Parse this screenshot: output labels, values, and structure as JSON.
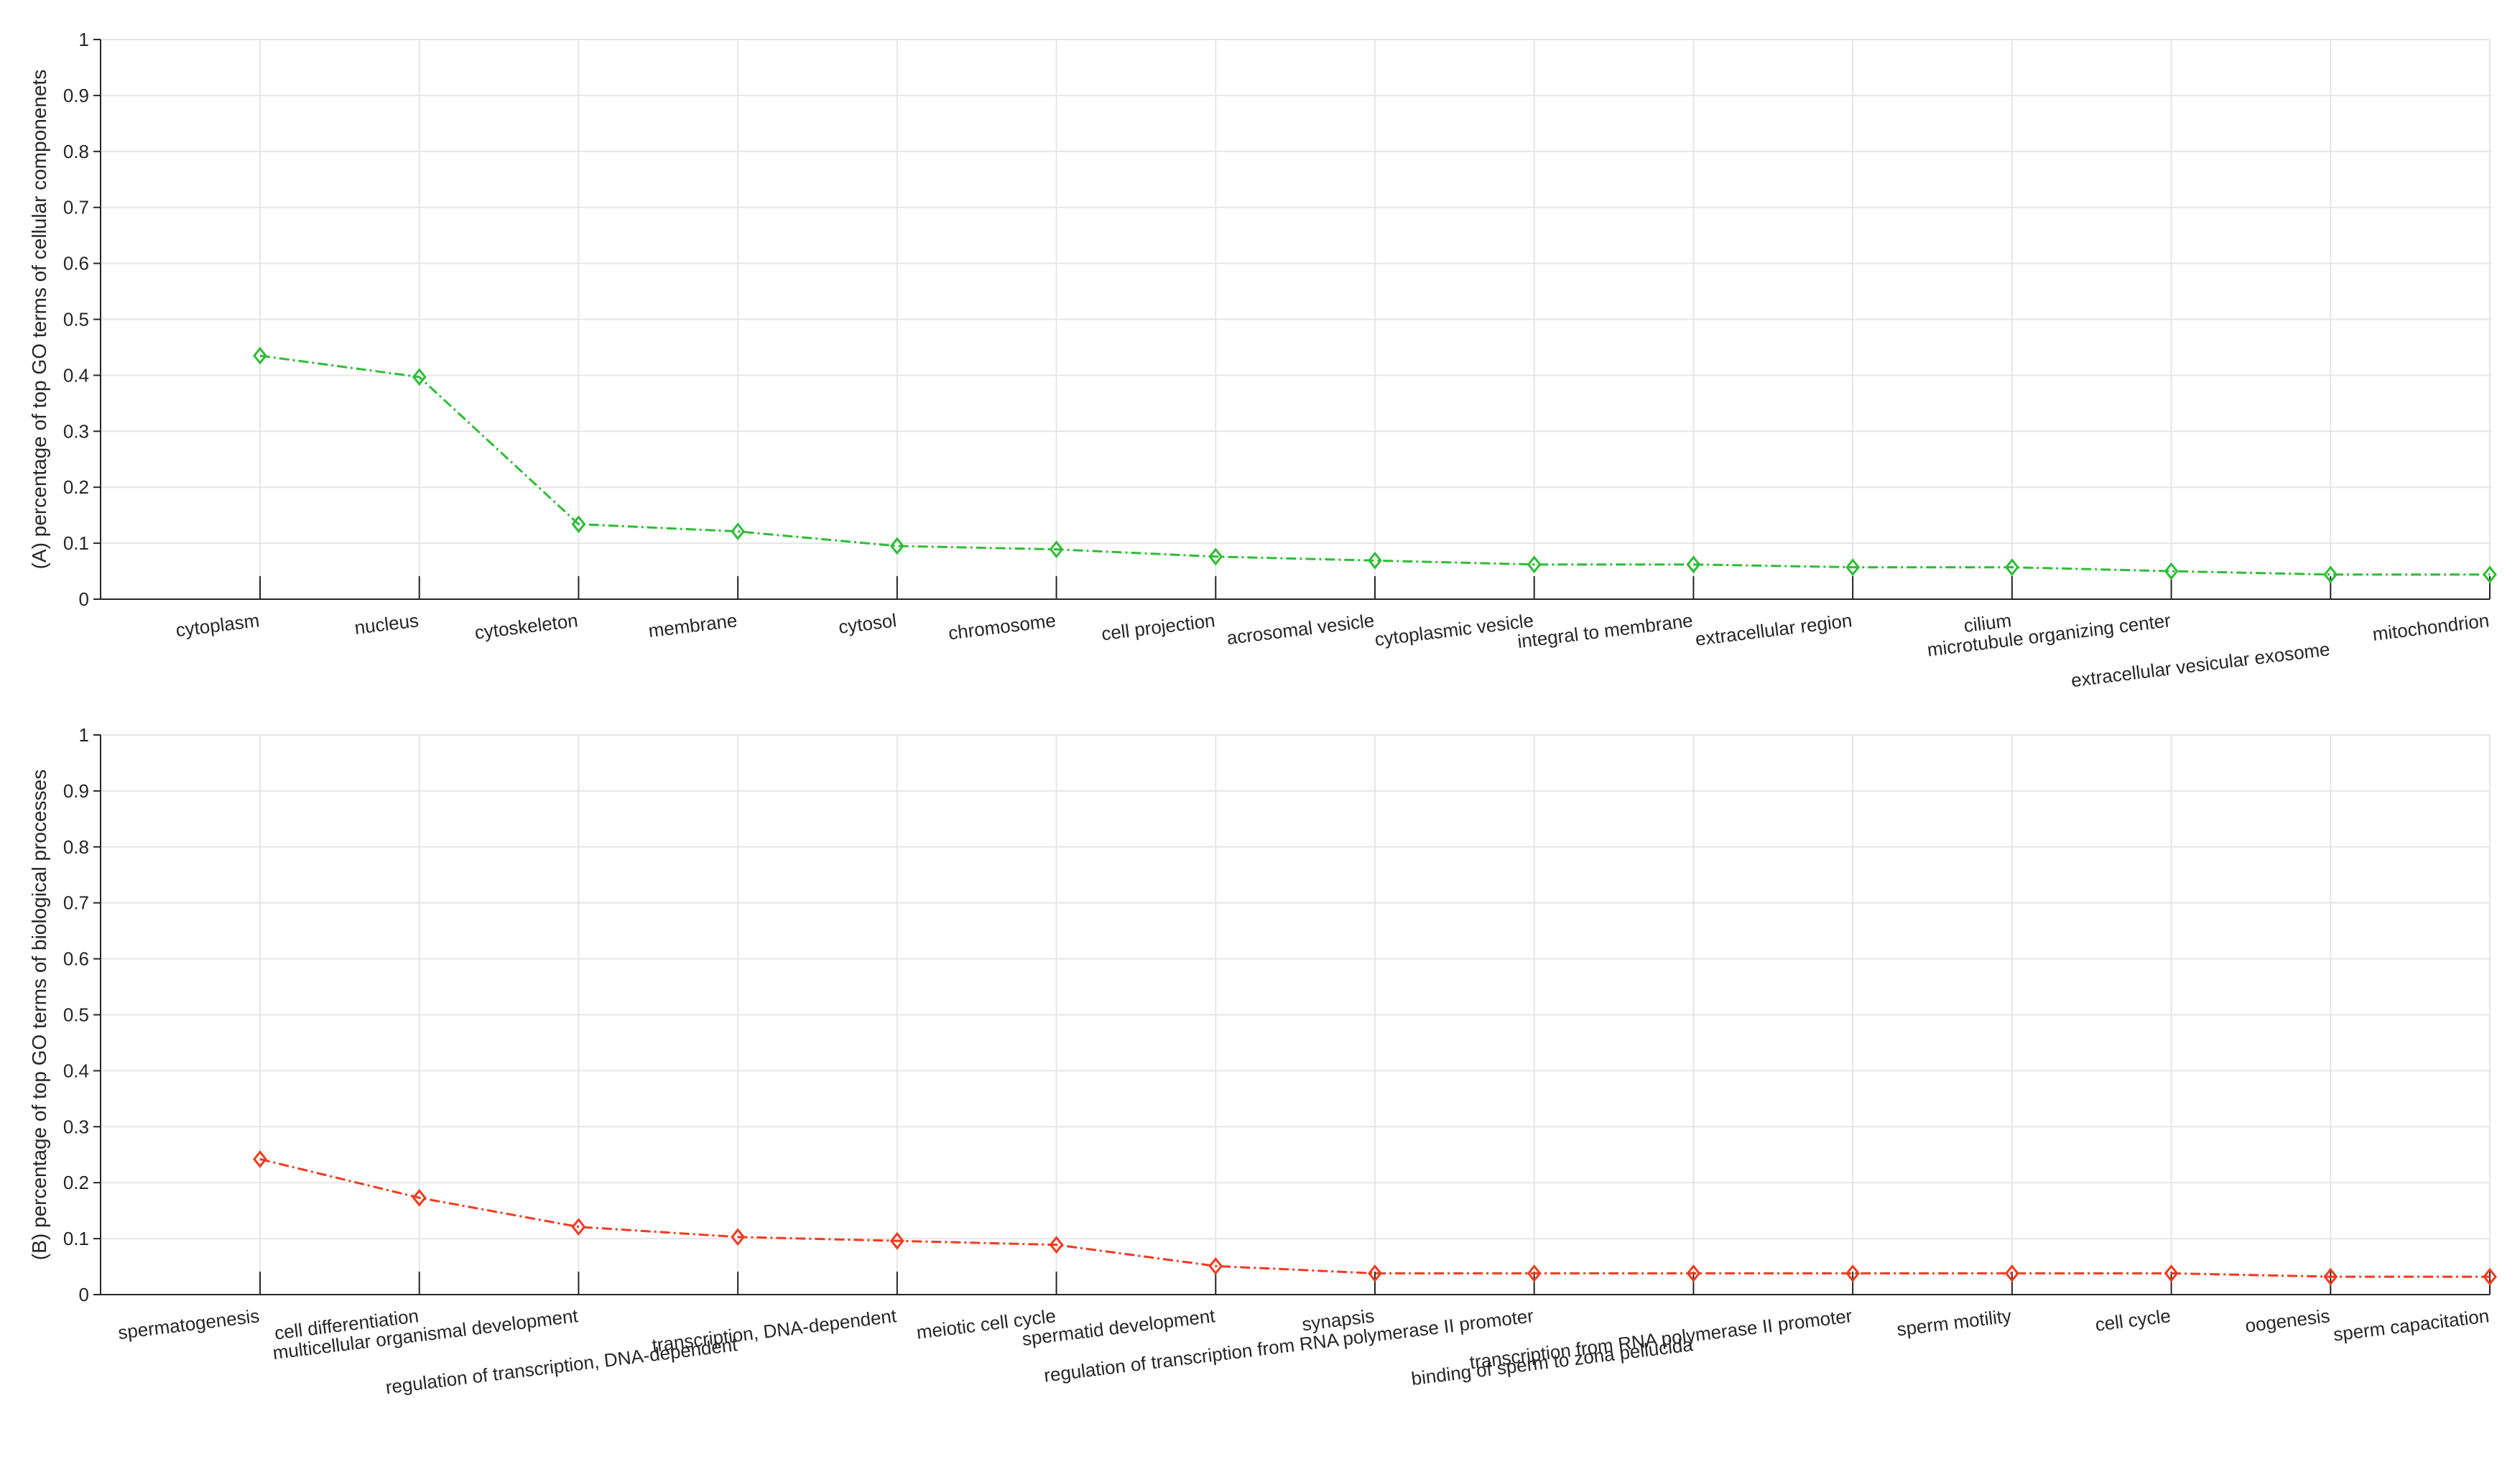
{
  "chart_data": [
    {
      "type": "line",
      "title": "",
      "xlabel": "",
      "ylabel": "(A) percentage of top GO terms of cellular componenets",
      "ylim": [
        0,
        1
      ],
      "yticks": [
        "0",
        "0.1",
        "0.2",
        "0.3",
        "0.4",
        "0.5",
        "0.6",
        "0.7",
        "0.8",
        "0.9",
        "1"
      ],
      "grid": true,
      "color": "#2ebd35",
      "marker": "diamond",
      "categories": [
        "cytoplasm",
        "nucleus",
        "cytoskeleton",
        "membrane",
        "cytosol",
        "chromosome",
        "cell projection",
        "acrosomal vesicle",
        "cytoplasmic vesicle",
        "integral to membrane",
        "extracellular region",
        "cilium",
        "microtubule organizing center",
        "extracellular vesicular exosome",
        "mitochondrion"
      ],
      "values": [
        0.435,
        0.397,
        0.134,
        0.121,
        0.095,
        0.089,
        0.076,
        0.069,
        0.062,
        0.062,
        0.057,
        0.057,
        0.05,
        0.044,
        0.044
      ]
    },
    {
      "type": "line",
      "title": "",
      "xlabel": "",
      "ylabel": "(B) percentage of top GO terms of biological processes",
      "ylim": [
        0,
        1
      ],
      "yticks": [
        "0",
        "0.1",
        "0.2",
        "0.3",
        "0.4",
        "0.5",
        "0.6",
        "0.7",
        "0.8",
        "0.9",
        "1"
      ],
      "grid": true,
      "color": "#f23a1f",
      "marker": "diamond",
      "categories": [
        "spermatogenesis",
        "cell differentiation",
        "multicellular organismal development",
        "regulation of transcription, DNA-dependent",
        "transcription, DNA-dependent",
        "meiotic cell cycle",
        "spermatid development",
        "synapsis",
        "regulation of transcription from RNA polymerase II promoter",
        "binding of sperm to zona pellucida",
        "transcription from RNA polymerase II promoter",
        "sperm motility",
        "cell cycle",
        "oogenesis",
        "sperm capacitation"
      ],
      "values": [
        0.242,
        0.173,
        0.121,
        0.103,
        0.096,
        0.089,
        0.051,
        0.038,
        0.038,
        0.038,
        0.038,
        0.038,
        0.038,
        0.032,
        0.032
      ]
    }
  ]
}
